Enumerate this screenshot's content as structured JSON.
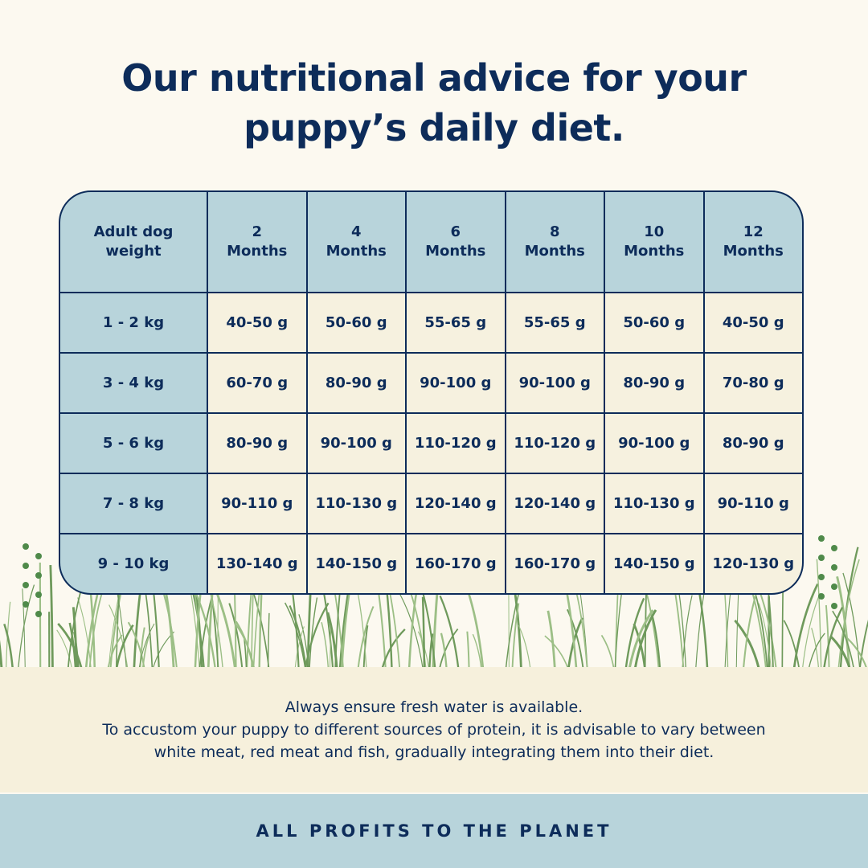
{
  "title": [
    "Our nutritional advice for your",
    "puppy’s daily diet."
  ],
  "table": {
    "header": [
      [
        "Adult dog",
        "weight"
      ],
      [
        "2",
        "Months"
      ],
      [
        "4",
        "Months"
      ],
      [
        "6",
        "Months"
      ],
      [
        "8",
        "Months"
      ],
      [
        "10",
        "Months"
      ],
      [
        "12",
        "Months"
      ]
    ],
    "rows": [
      [
        "1 - 2 kg",
        "40-50 g",
        "50-60 g",
        "55-65 g",
        "55-65 g",
        "50-60 g",
        "40-50 g"
      ],
      [
        "3 - 4 kg",
        "60-70 g",
        "80-90 g",
        "90-100 g",
        "90-100 g",
        "80-90 g",
        "70-80 g"
      ],
      [
        "5 - 6 kg",
        "80-90 g",
        "90-100 g",
        "110-120 g",
        "110-120 g",
        "90-100 g",
        "80-90 g"
      ],
      [
        "7 - 8 kg",
        "90-110 g",
        "110-130 g",
        "120-140 g",
        "120-140 g",
        "110-130 g",
        "90-110 g"
      ],
      [
        "9 - 10 kg",
        "130-140 g",
        "140-150 g",
        "160-170 g",
        "160-170 g",
        "140-150 g",
        "120-130 g"
      ]
    ]
  },
  "note": [
    "Always ensure fresh water is available.",
    "To accustom your puppy to different sources of protein, it is advisable to vary between",
    "white meat, red meat and fish, gradually integrating them into their diet."
  ],
  "banner": "ALL PROFITS TO THE PLANET"
}
